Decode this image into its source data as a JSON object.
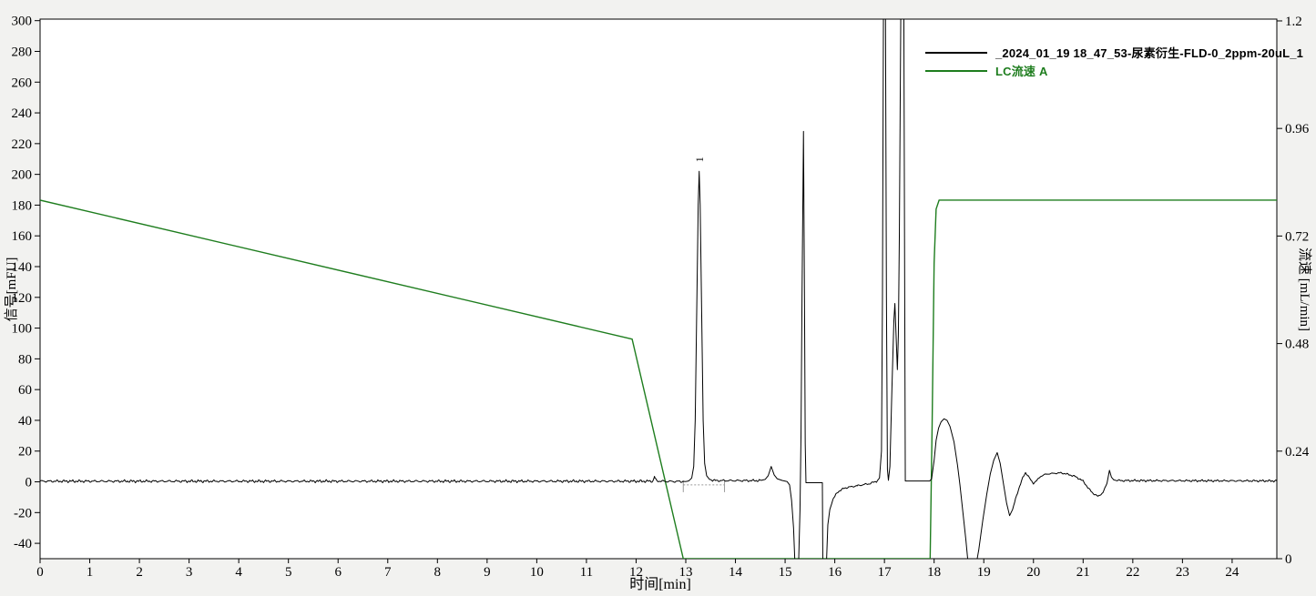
{
  "window": {
    "background": "#f2f2f0",
    "plot_background": "#ffffff",
    "frame_color": "#000000",
    "integration_mark_color": "#9a9a9a"
  },
  "legend": {
    "items": [
      {
        "label": "_2024_01_19 18_47_53-尿素衍生-FLD-0_2ppm-20uL_1",
        "color": "#000000"
      },
      {
        "label": "LC流速 A",
        "color": "#1e7d1e"
      }
    ]
  },
  "axes": {
    "x": {
      "title": "时间[min]",
      "min": 0,
      "max": 24.9,
      "ticks": [
        0,
        1,
        2,
        3,
        4,
        5,
        6,
        7,
        8,
        9,
        10,
        11,
        12,
        13,
        14,
        15,
        16,
        17,
        18,
        19,
        20,
        21,
        22,
        23,
        24
      ]
    },
    "y_left": {
      "title": "信号[mFU]",
      "min": -50,
      "max": 301,
      "ticks": [
        -40,
        -20,
        0,
        20,
        40,
        60,
        80,
        100,
        120,
        140,
        160,
        180,
        200,
        220,
        240,
        260,
        280,
        300
      ]
    },
    "y_right": {
      "title": "流速 [mL/min]",
      "min": 0,
      "max": 1.204,
      "ticks": [
        0,
        0.24,
        0.48,
        0.72,
        0.96,
        1.2
      ]
    }
  },
  "chart_data": {
    "type": "line",
    "xlabel": "时间[min]",
    "ylabel_left": "信号[mFU]",
    "ylabel_right": "流速 [mL/min]",
    "x_range": [
      0,
      24.9
    ],
    "y_left_range": [
      -50,
      301
    ],
    "y_right_range": [
      0,
      1.204
    ],
    "grid": false,
    "legend_position": "top-right-inside",
    "peak_labels": [
      {
        "text": "1",
        "x": 13.27,
        "value": 202
      }
    ],
    "integration_marks": [
      {
        "x1": 12.95,
        "x2": 13.78,
        "y": -2
      }
    ],
    "series": [
      {
        "name": "_2024_01_19 18_47_53-尿素衍生-FLD-0_2ppm-20uL_1",
        "axis": "left",
        "color": "#000000",
        "width": 1,
        "noise_ranges": [
          {
            "from": 0.0,
            "to": 12.95,
            "amp": 1.0
          },
          {
            "from": 13.5,
            "to": 14.5,
            "amp": 0.9
          },
          {
            "from": 15.95,
            "to": 16.85,
            "amp": 0.8
          },
          {
            "from": 19.6,
            "to": 21.45,
            "amp": 0.6
          },
          {
            "from": 21.65,
            "to": 24.9,
            "amp": 0.8
          }
        ],
        "points": [
          [
            0,
            0.4
          ],
          [
            12.3,
            0.4
          ],
          [
            12.34,
            0.6
          ],
          [
            12.37,
            3.2
          ],
          [
            12.41,
            0.6
          ],
          [
            12.6,
            0.3
          ],
          [
            13.0,
            0.2
          ],
          [
            13.06,
            0.6
          ],
          [
            13.12,
            2.5
          ],
          [
            13.16,
            10
          ],
          [
            13.19,
            40
          ],
          [
            13.22,
            110
          ],
          [
            13.25,
            180
          ],
          [
            13.27,
            202
          ],
          [
            13.29,
            180
          ],
          [
            13.32,
            110
          ],
          [
            13.35,
            40
          ],
          [
            13.38,
            12
          ],
          [
            13.42,
            4
          ],
          [
            13.48,
            1.5
          ],
          [
            13.6,
            0.8
          ],
          [
            14.5,
            0.8
          ],
          [
            14.6,
            1.6
          ],
          [
            14.66,
            4
          ],
          [
            14.72,
            10
          ],
          [
            14.78,
            4.5
          ],
          [
            14.84,
            2
          ],
          [
            14.95,
            0.8
          ],
          [
            15.04,
            0.2
          ],
          [
            15.09,
            -2
          ],
          [
            15.13,
            -12
          ],
          [
            15.17,
            -30
          ],
          [
            15.2,
            -55
          ],
          [
            15.27,
            -55
          ],
          [
            15.3,
            -18
          ],
          [
            15.32,
            30
          ],
          [
            15.34,
            120
          ],
          [
            15.37,
            228
          ],
          [
            15.39,
            120
          ],
          [
            15.405,
            25
          ],
          [
            15.42,
            -0.6
          ],
          [
            15.75,
            -0.6
          ],
          [
            15.76,
            -55
          ],
          [
            15.83,
            -55
          ],
          [
            15.86,
            -28
          ],
          [
            15.9,
            -18
          ],
          [
            15.97,
            -11
          ],
          [
            16.06,
            -6.5
          ],
          [
            16.2,
            -4
          ],
          [
            16.45,
            -2.5
          ],
          [
            16.7,
            -1.2
          ],
          [
            16.85,
            0.5
          ],
          [
            16.9,
            2.5
          ],
          [
            16.94,
            20
          ],
          [
            16.96,
            120
          ],
          [
            16.98,
            310
          ],
          [
            17.02,
            310
          ],
          [
            17.04,
            120
          ],
          [
            17.06,
            8
          ],
          [
            17.08,
            1
          ],
          [
            17.11,
            10
          ],
          [
            17.15,
            60
          ],
          [
            17.19,
            105
          ],
          [
            17.21,
            116
          ],
          [
            17.24,
            90
          ],
          [
            17.26,
            73
          ],
          [
            17.28,
            95
          ],
          [
            17.3,
            160
          ],
          [
            17.33,
            310
          ],
          [
            17.39,
            310
          ],
          [
            17.41,
            100
          ],
          [
            17.42,
            0.5
          ],
          [
            17.91,
            0.5
          ],
          [
            17.95,
            2
          ],
          [
            18.0,
            14
          ],
          [
            18.04,
            27
          ],
          [
            18.09,
            35
          ],
          [
            18.14,
            39
          ],
          [
            18.2,
            41
          ],
          [
            18.26,
            40
          ],
          [
            18.32,
            36
          ],
          [
            18.4,
            26
          ],
          [
            18.47,
            11
          ],
          [
            18.52,
            -2
          ],
          [
            18.58,
            -20
          ],
          [
            18.64,
            -38
          ],
          [
            18.69,
            -55
          ],
          [
            18.84,
            -55
          ],
          [
            18.9,
            -44
          ],
          [
            18.98,
            -25
          ],
          [
            19.06,
            -8
          ],
          [
            19.13,
            5
          ],
          [
            19.2,
            14
          ],
          [
            19.27,
            19
          ],
          [
            19.33,
            12
          ],
          [
            19.4,
            -2
          ],
          [
            19.46,
            -14
          ],
          [
            19.52,
            -22
          ],
          [
            19.58,
            -18
          ],
          [
            19.65,
            -10
          ],
          [
            19.72,
            -3
          ],
          [
            19.79,
            3
          ],
          [
            19.84,
            6
          ],
          [
            19.89,
            4
          ],
          [
            19.95,
            1
          ],
          [
            20.0,
            -1
          ],
          [
            20.07,
            1
          ],
          [
            20.14,
            3.5
          ],
          [
            20.25,
            5
          ],
          [
            20.4,
            5.5
          ],
          [
            20.55,
            5.8
          ],
          [
            20.68,
            5
          ],
          [
            20.84,
            3.5
          ],
          [
            21.0,
            0.5
          ],
          [
            21.1,
            -4
          ],
          [
            21.2,
            -7.5
          ],
          [
            21.3,
            -9.5
          ],
          [
            21.4,
            -7
          ],
          [
            21.48,
            -1
          ],
          [
            21.53,
            7.5
          ],
          [
            21.57,
            3
          ],
          [
            21.62,
            1.2
          ],
          [
            21.75,
            0.8
          ],
          [
            24.9,
            0.6
          ]
        ]
      },
      {
        "name": "LC流速 A",
        "axis": "right",
        "color": "#1e7d1e",
        "width": 1.4,
        "noise_ranges": [],
        "points": [
          [
            0,
            0.8
          ],
          [
            11.92,
            0.49
          ],
          [
            12.95,
            0
          ],
          [
            17.92,
            0
          ],
          [
            17.96,
            0.3
          ],
          [
            18.0,
            0.66
          ],
          [
            18.04,
            0.78
          ],
          [
            18.1,
            0.8
          ],
          [
            24.9,
            0.8
          ]
        ]
      }
    ]
  }
}
